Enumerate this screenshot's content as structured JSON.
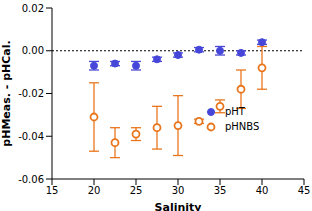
{
  "chart_data": {
    "type": "scatter",
    "x_label": "Salinity",
    "y_label": "pHMeas. - pHCal.",
    "xlim": [
      15,
      45
    ],
    "xticks": [
      15,
      20,
      25,
      30,
      35,
      40,
      45
    ],
    "ylim": [
      -0.06,
      0.02
    ],
    "yticks": [
      -0.06,
      -0.04,
      -0.02,
      {
        "value": 0,
        "label": "0.00"
      },
      0.02
    ],
    "reference_line": 0,
    "grid": false,
    "legend": "right",
    "series": [
      {
        "name": "pHT",
        "color": "#4646d8",
        "marker": "filled",
        "x": [
          20,
          22.5,
          25,
          27.5,
          30,
          32.5,
          35,
          37.5,
          40
        ],
        "values": [
          -0.007,
          -0.006,
          -0.007,
          -0.004,
          -0.002,
          0.0005,
          0.0,
          -0.001,
          0.004
        ],
        "errors": [
          0.002,
          0.001,
          0.002,
          0.001,
          0.001,
          0.001,
          0.002,
          0.001,
          0.001
        ]
      },
      {
        "name": "pHNBS",
        "color": "#e8761e",
        "marker": "open",
        "x": [
          20,
          22.5,
          25,
          27.5,
          30,
          32.5,
          35,
          37.5,
          40
        ],
        "values": [
          -0.031,
          -0.043,
          -0.039,
          -0.036,
          -0.035,
          -0.033,
          -0.026,
          -0.018,
          -0.008
        ],
        "errors": [
          0.016,
          0.007,
          0.003,
          0.01,
          0.014,
          0.001,
          0.003,
          0.009,
          0.01
        ]
      }
    ]
  }
}
